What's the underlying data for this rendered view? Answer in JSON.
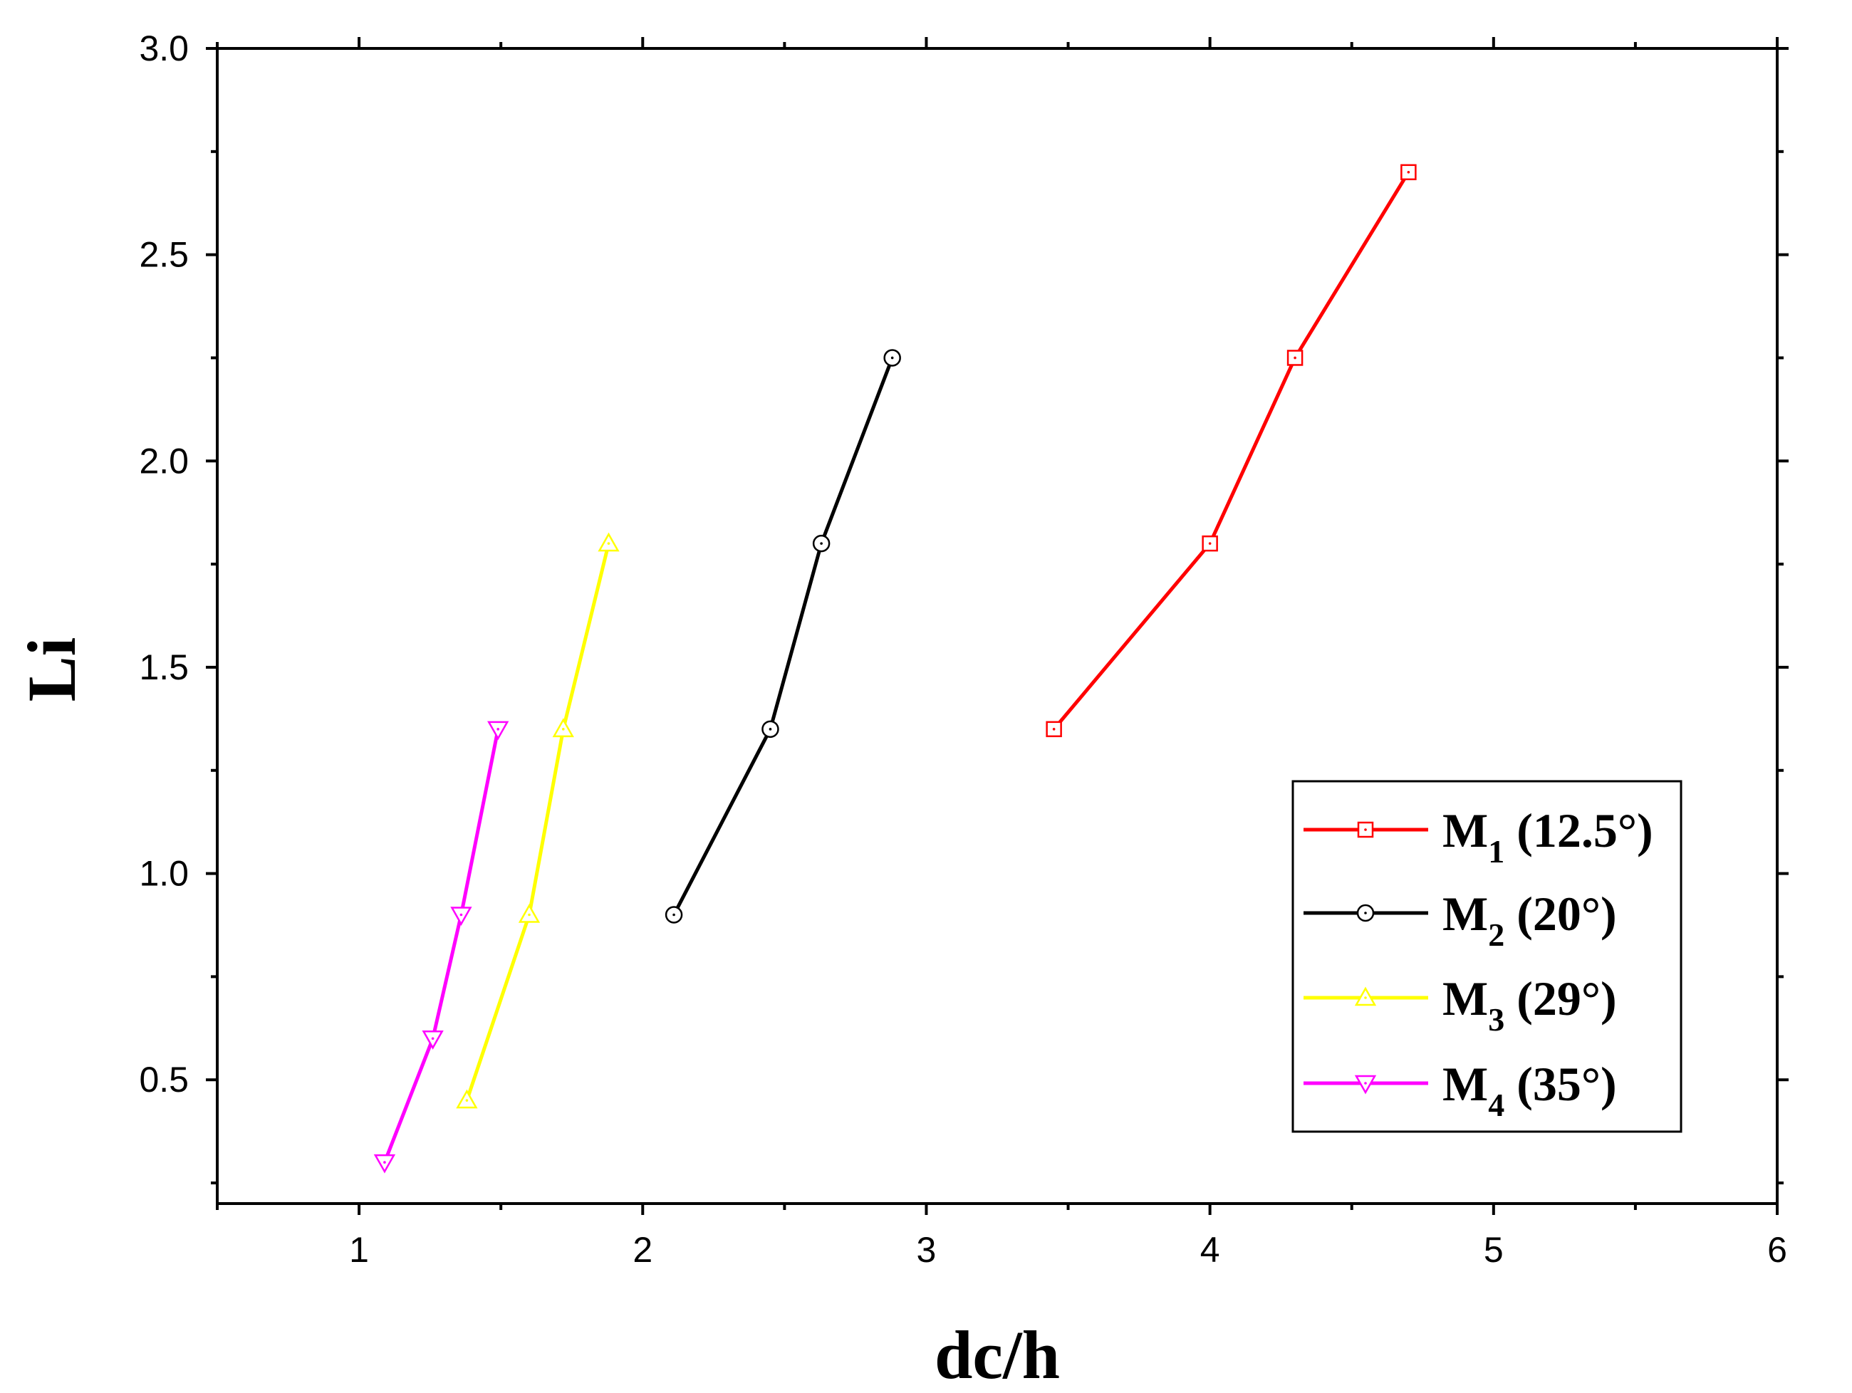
{
  "chart_data": {
    "type": "line",
    "title": "",
    "xlabel": "dc/h",
    "ylabel": "Li",
    "xlim": [
      0.5,
      6
    ],
    "ylim": [
      0.2,
      3.0
    ],
    "x_ticks": [
      "1",
      "2",
      "3",
      "4",
      "5",
      "6"
    ],
    "y_ticks": [
      "0.5",
      "1.0",
      "1.5",
      "2.0",
      "2.5",
      "3.0"
    ],
    "grid": false,
    "legend_position": "bottom-right",
    "series": [
      {
        "name": "M1 (12.5°)",
        "label_main": "M",
        "label_sub": "1",
        "label_rest": " (12.5°)",
        "color": "#ff0000",
        "marker": "square",
        "x": [
          3.45,
          4.0,
          4.3,
          4.7
        ],
        "y": [
          1.35,
          1.8,
          2.25,
          2.7
        ]
      },
      {
        "name": "M2 (20°)",
        "label_main": "M",
        "label_sub": "2",
        "label_rest": " (20°)",
        "color": "#000000",
        "marker": "circle",
        "x": [
          2.11,
          2.45,
          2.63,
          2.88
        ],
        "y": [
          0.9,
          1.35,
          1.8,
          2.25
        ]
      },
      {
        "name": "M3 (29°)",
        "label_main": "M",
        "label_sub": "3",
        "label_rest": " (29°)",
        "color": "#ffff00",
        "marker": "triangle-up",
        "x": [
          1.38,
          1.6,
          1.72,
          1.88
        ],
        "y": [
          0.45,
          0.9,
          1.35,
          1.8
        ]
      },
      {
        "name": "M4 (35°)",
        "label_main": "M",
        "label_sub": "4",
        "label_rest": " (35°)",
        "color": "#ff00ff",
        "marker": "triangle-down",
        "x": [
          1.09,
          1.26,
          1.36,
          1.49
        ],
        "y": [
          0.3,
          0.6,
          0.9,
          1.35
        ]
      }
    ]
  }
}
